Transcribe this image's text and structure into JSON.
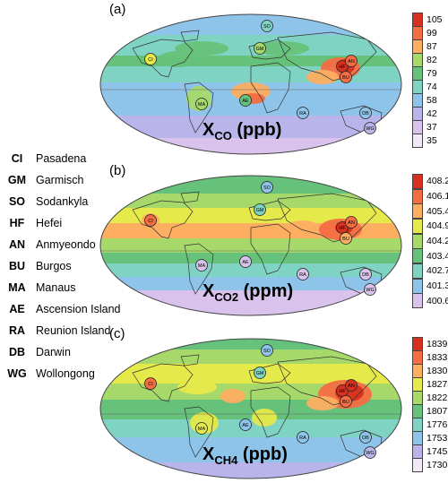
{
  "stations": [
    {
      "code": "CI",
      "name": "Pasadena"
    },
    {
      "code": "GM",
      "name": "Garmisch"
    },
    {
      "code": "SO",
      "name": "Sodankyla"
    },
    {
      "code": "HF",
      "name": "Hefei"
    },
    {
      "code": "AN",
      "name": "Anmyeondo"
    },
    {
      "code": "BU",
      "name": "Burgos"
    },
    {
      "code": "MA",
      "name": "Manaus"
    },
    {
      "code": "AE",
      "name": "Ascension Island"
    },
    {
      "code": "RA",
      "name": "Reunion Island"
    },
    {
      "code": "DB",
      "name": "Darwin"
    },
    {
      "code": "WG",
      "name": "Wollongong"
    }
  ],
  "panels": [
    {
      "label": "(a)",
      "title_main": "X",
      "title_sub": "CO",
      "title_unit": " (ppb)",
      "ticks": [
        "105",
        "99",
        "87",
        "82",
        "79",
        "74",
        "58",
        "42",
        "37",
        "35"
      ],
      "colors": [
        "#d7301f",
        "#f46d43",
        "#fdae61",
        "#a6d96a",
        "#66c27a",
        "#7fd3c3",
        "#8fc4ea",
        "#b9b5ea",
        "#d9c3ec",
        "#f3e8f7"
      ]
    },
    {
      "label": "(b)",
      "title_main": "X",
      "title_sub": "CO2",
      "title_unit": " (ppm)",
      "ticks": [
        "408.2",
        "406.1",
        "405.4",
        "404.9",
        "404.2",
        "403.4",
        "402.7",
        "401.3",
        "400.6"
      ],
      "colors": [
        "#d7301f",
        "#f46d43",
        "#fdae61",
        "#e6e94a",
        "#a6d96a",
        "#66c27a",
        "#7fd3c3",
        "#8fc4ea",
        "#d9c3ec"
      ]
    },
    {
      "label": "(c)",
      "title_main": "X",
      "title_sub": "CH4",
      "title_unit": " (ppb)",
      "ticks": [
        "1839",
        "1833",
        "1830",
        "1827",
        "1822",
        "1807",
        "1776",
        "1753",
        "1745",
        "1730"
      ],
      "colors": [
        "#d7301f",
        "#f46d43",
        "#fdae61",
        "#e6e94a",
        "#a6d96a",
        "#66c27a",
        "#7fd3c3",
        "#8fc4ea",
        "#b9b5ea",
        "#f3e8f7"
      ]
    }
  ]
}
